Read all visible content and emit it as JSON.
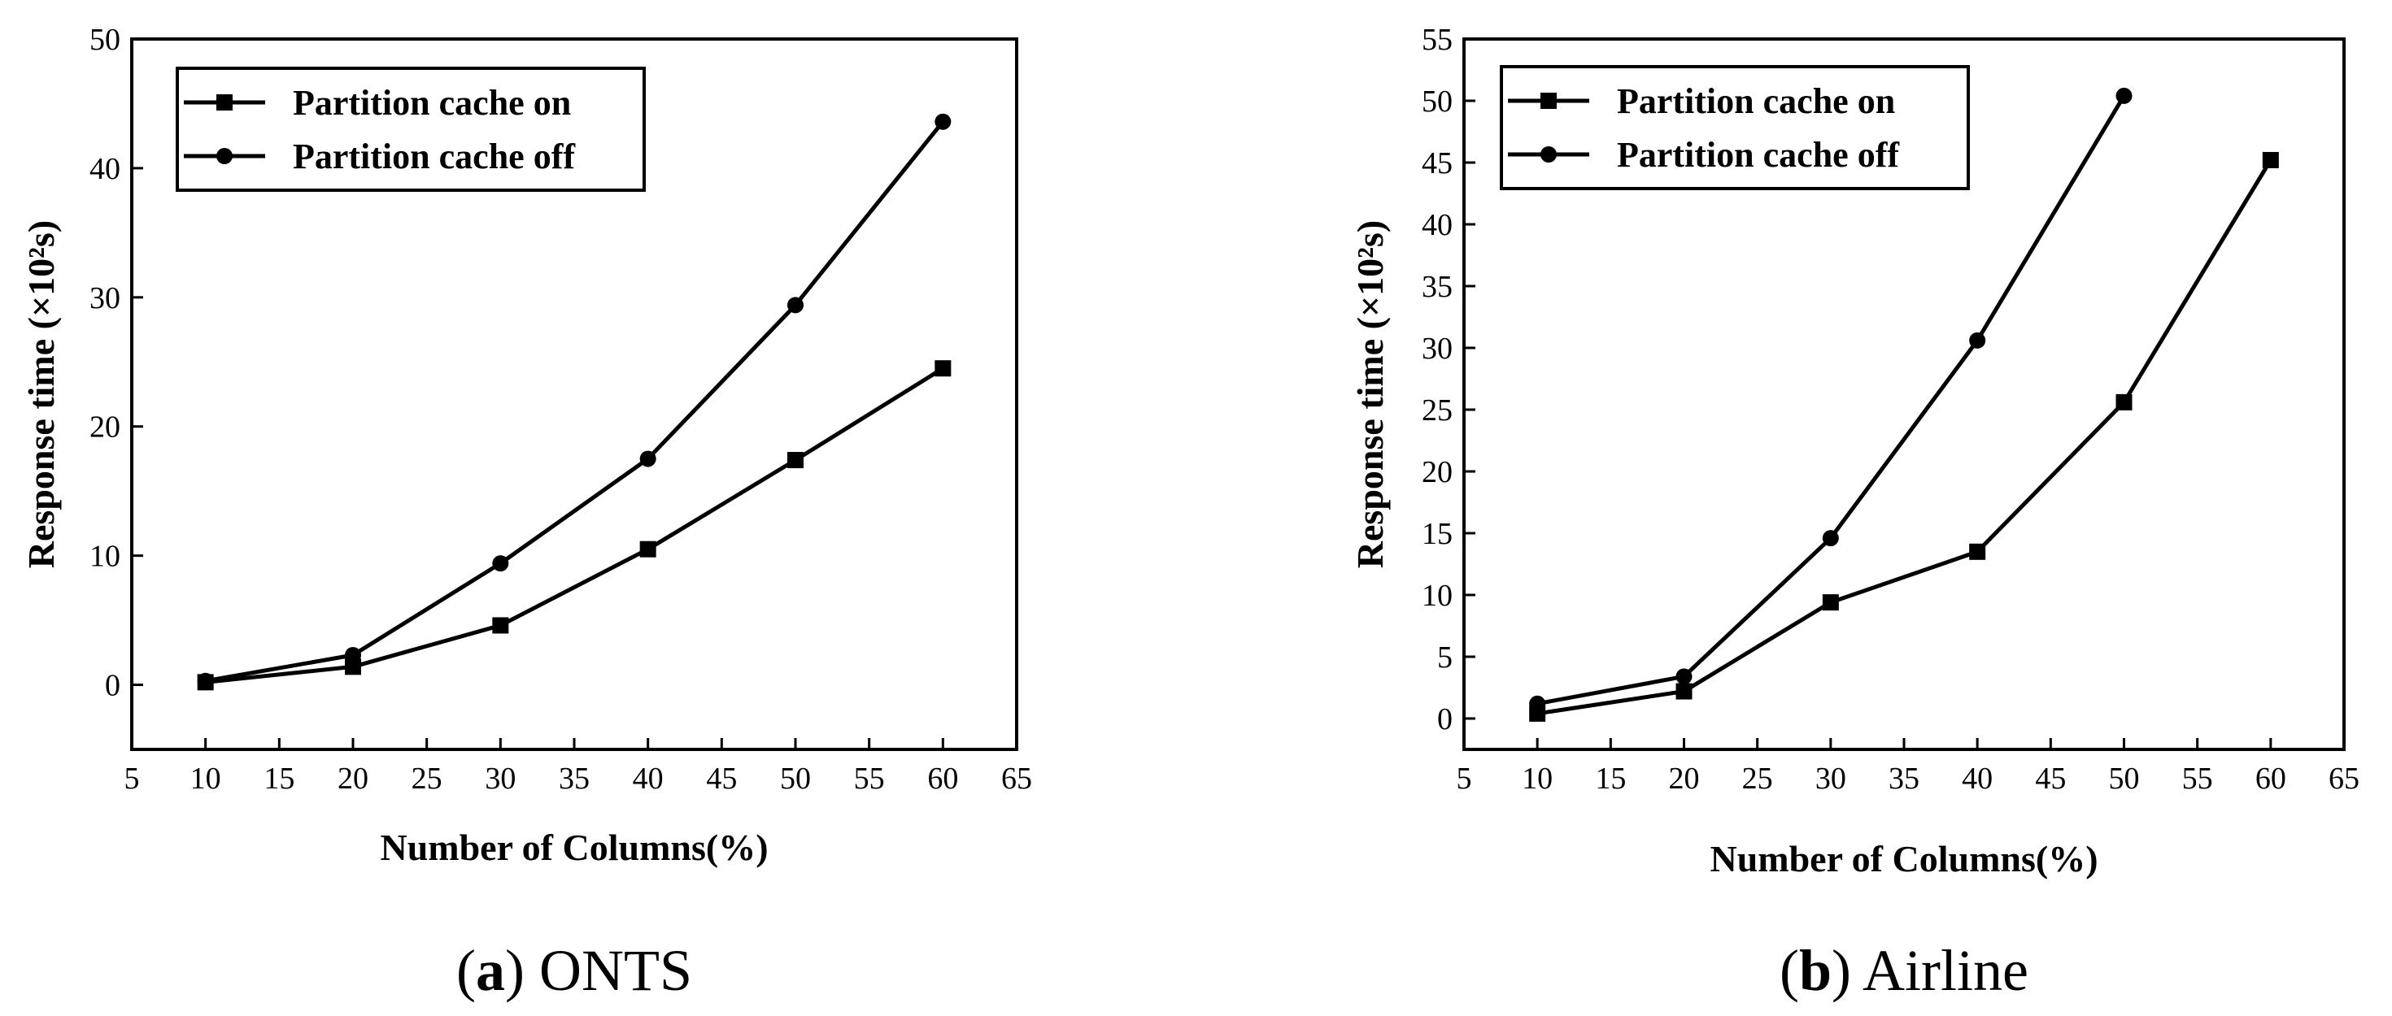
{
  "chart_data": [
    {
      "type": "line",
      "caption_letter": "a",
      "caption_name": "ONTS",
      "xlabel": "Number of Columns(%)",
      "ylabel": "Response time (×10²s)",
      "xlim": [
        5,
        65
      ],
      "ylim": [
        -5,
        50
      ],
      "xticks": [
        5,
        10,
        15,
        20,
        25,
        30,
        35,
        40,
        45,
        50,
        55,
        60,
        65
      ],
      "yticks": [
        0,
        10,
        20,
        30,
        40,
        50
      ],
      "legend_position": "top-left",
      "series": [
        {
          "name": "Partition cache on",
          "marker": "square",
          "x": [
            10,
            20,
            30,
            40,
            50,
            60
          ],
          "y": [
            0.2,
            1.4,
            4.6,
            10.5,
            17.4,
            24.5
          ]
        },
        {
          "name": "Partition cache off",
          "marker": "circle",
          "x": [
            10,
            20,
            30,
            40,
            50,
            60
          ],
          "y": [
            0.3,
            2.3,
            9.4,
            17.5,
            29.4,
            43.6
          ]
        }
      ]
    },
    {
      "type": "line",
      "caption_letter": "b",
      "caption_name": "Airline",
      "xlabel": "Number of Columns(%)",
      "ylabel": "Response time (×10²s)",
      "xlim": [
        5,
        65
      ],
      "ylim": [
        -2.5,
        55
      ],
      "xticks": [
        5,
        10,
        15,
        20,
        25,
        30,
        35,
        40,
        45,
        50,
        55,
        60,
        65
      ],
      "yticks": [
        0,
        5,
        10,
        15,
        20,
        25,
        30,
        35,
        40,
        45,
        50,
        55
      ],
      "legend_position": "top-left",
      "series": [
        {
          "name": "Partition cache on",
          "marker": "square",
          "x": [
            10,
            20,
            30,
            40,
            50,
            60
          ],
          "y": [
            0.4,
            2.2,
            9.4,
            13.5,
            25.6,
            45.2
          ]
        },
        {
          "name": "Partition cache off",
          "marker": "circle",
          "x": [
            10,
            20,
            30,
            40,
            50
          ],
          "y": [
            1.2,
            3.4,
            14.6,
            30.6,
            50.4
          ]
        }
      ]
    }
  ]
}
